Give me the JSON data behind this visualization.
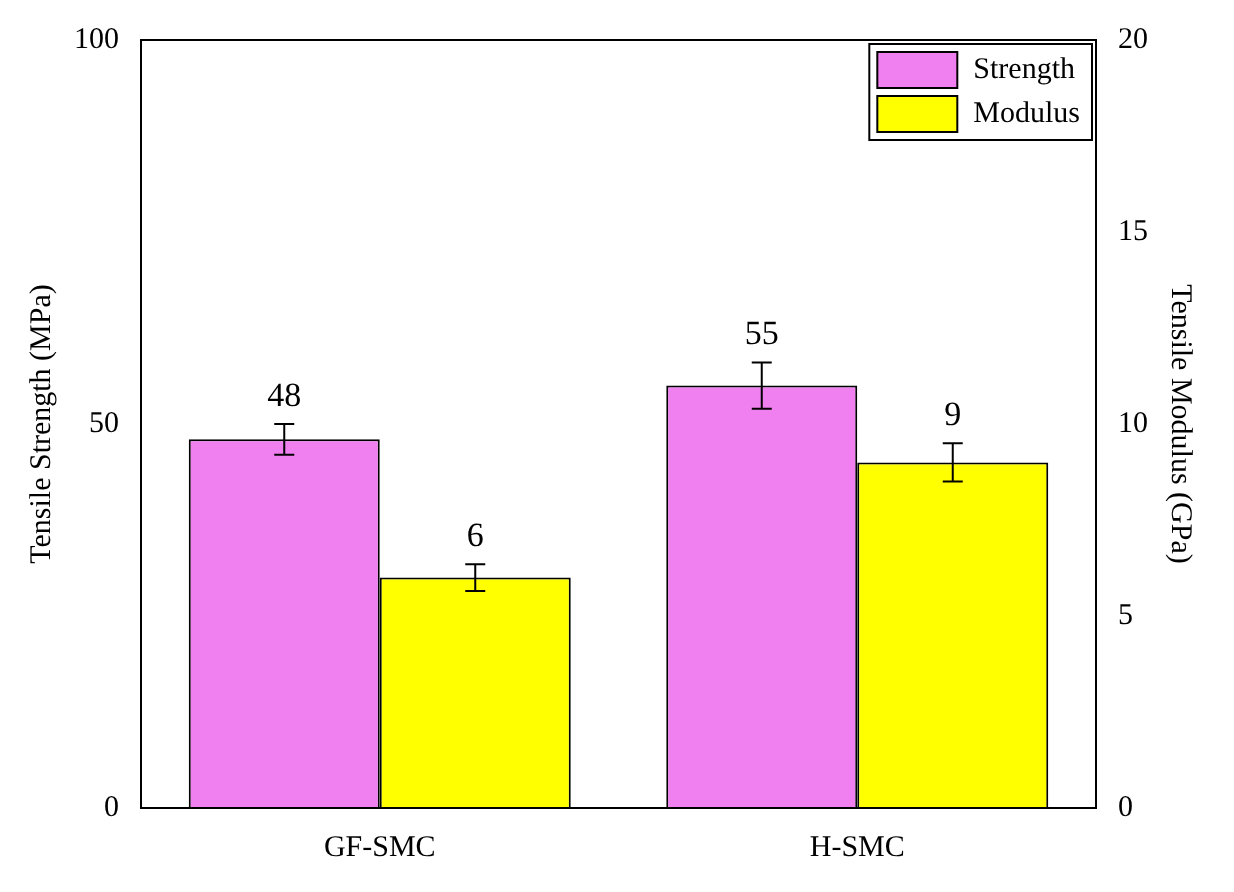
{
  "chart_data": {
    "type": "bar",
    "categories": [
      "GF-SMC",
      "H-SMC"
    ],
    "ylabel": "Tensile Strength (MPa)",
    "y2label": "Tensile Modulus (GPa)",
    "ylim": [
      0,
      100
    ],
    "yticks": [
      0,
      50,
      100
    ],
    "y2lim": [
      0,
      20
    ],
    "y2ticks": [
      0,
      5,
      10,
      15,
      20
    ],
    "series": [
      {
        "name": "Strength",
        "color": "#f07ff0",
        "values": [
          48,
          55
        ],
        "errors": [
          2,
          3
        ]
      },
      {
        "name": "Modulus",
        "color": "#ffff00",
        "values": [
          6,
          9
        ],
        "errors": [
          0.35,
          0.5
        ],
        "axis": "y2"
      }
    ],
    "data_labels": true,
    "legend": "top right",
    "grid": false
  }
}
